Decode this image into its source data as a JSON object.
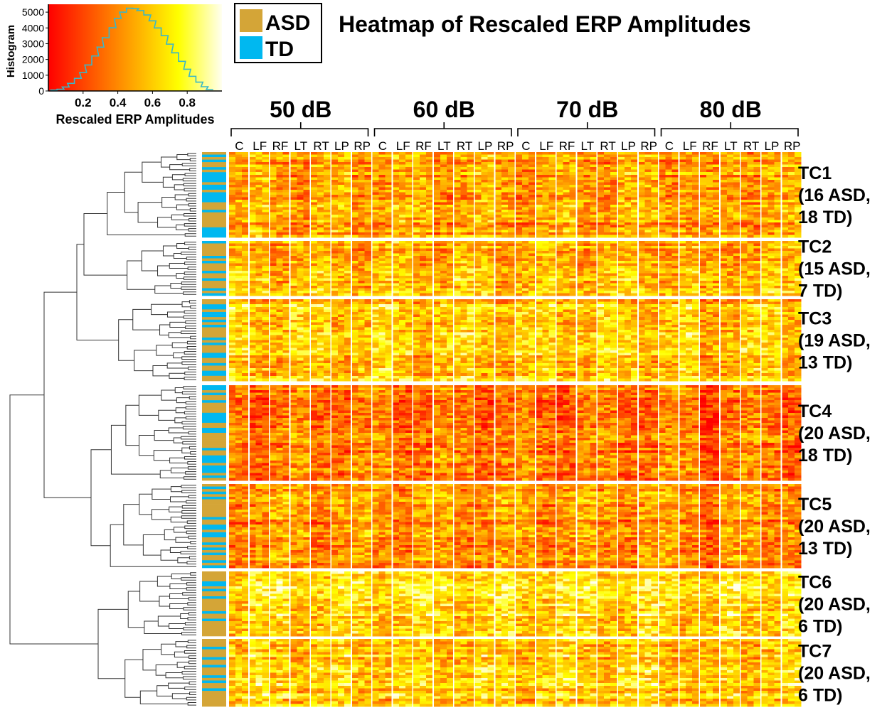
{
  "title": "Heatmap of Rescaled ERP Amplitudes",
  "legend": {
    "items": [
      {
        "label": "ASD",
        "color": "#d4a537"
      },
      {
        "label": "TD",
        "color": "#00b8f0"
      }
    ]
  },
  "histogram": {
    "ylabel": "Histogram",
    "xlabel": "Rescaled ERP Amplitudes",
    "yticks": [
      "0",
      "1000",
      "2000",
      "3000",
      "4000",
      "5000"
    ],
    "xticks": [
      "0.2",
      "0.4",
      "0.6",
      "0.8"
    ],
    "ylim": [
      0,
      5500
    ],
    "xlim": [
      0,
      1
    ],
    "line_color": "#39b7c8",
    "bins": [
      0.03,
      0.07,
      0.1,
      0.13,
      0.17,
      0.2,
      0.23,
      0.27,
      0.3,
      0.33,
      0.37,
      0.4,
      0.43,
      0.47,
      0.5,
      0.53,
      0.57,
      0.6,
      0.63,
      0.67,
      0.7,
      0.73,
      0.77,
      0.8,
      0.83,
      0.87,
      0.9,
      0.93
    ],
    "counts": [
      60,
      110,
      250,
      480,
      800,
      1170,
      1650,
      2220,
      2780,
      3380,
      4010,
      4600,
      5000,
      5250,
      5230,
      5100,
      4820,
      4450,
      4000,
      3510,
      2970,
      2420,
      1880,
      1380,
      930,
      560,
      270,
      90
    ]
  },
  "chart_data": {
    "type": "heatmap",
    "title": "Heatmap of Rescaled ERP Amplitudes",
    "colorbar_label": "Rescaled ERP Amplitudes",
    "color_scale": [
      "#ff0000",
      "#ff9900",
      "#ffff00",
      "#ffffff"
    ],
    "value_range": [
      0,
      1
    ],
    "conditions": [
      "50 dB",
      "60 dB",
      "70 dB",
      "80 dB"
    ],
    "channels": [
      "C",
      "LF",
      "RF",
      "LT",
      "RT",
      "LP",
      "RP"
    ],
    "clusters": [
      {
        "name": "TC1",
        "details": [
          "(16 ASD,",
          "18 TD)"
        ],
        "asd": 16,
        "td": 18
      },
      {
        "name": "TC2",
        "details": [
          "(15 ASD,",
          "7 TD)"
        ],
        "asd": 15,
        "td": 7
      },
      {
        "name": "TC3",
        "details": [
          "(19 ASD,",
          "13 TD)"
        ],
        "asd": 19,
        "td": 13
      },
      {
        "name": "TC4",
        "details": [
          "(20 ASD,",
          "18 TD)"
        ],
        "asd": 20,
        "td": 18
      },
      {
        "name": "TC5",
        "details": [
          "(20 ASD,",
          "13 TD)"
        ],
        "asd": 20,
        "td": 13
      },
      {
        "name": "TC6",
        "details": [
          "(20 ASD,",
          "6 TD)"
        ],
        "asd": 20,
        "td": 6
      },
      {
        "name": "TC7",
        "details": [
          "(20 ASD,",
          "6 TD)"
        ],
        "asd": 20,
        "td": 6
      }
    ]
  }
}
